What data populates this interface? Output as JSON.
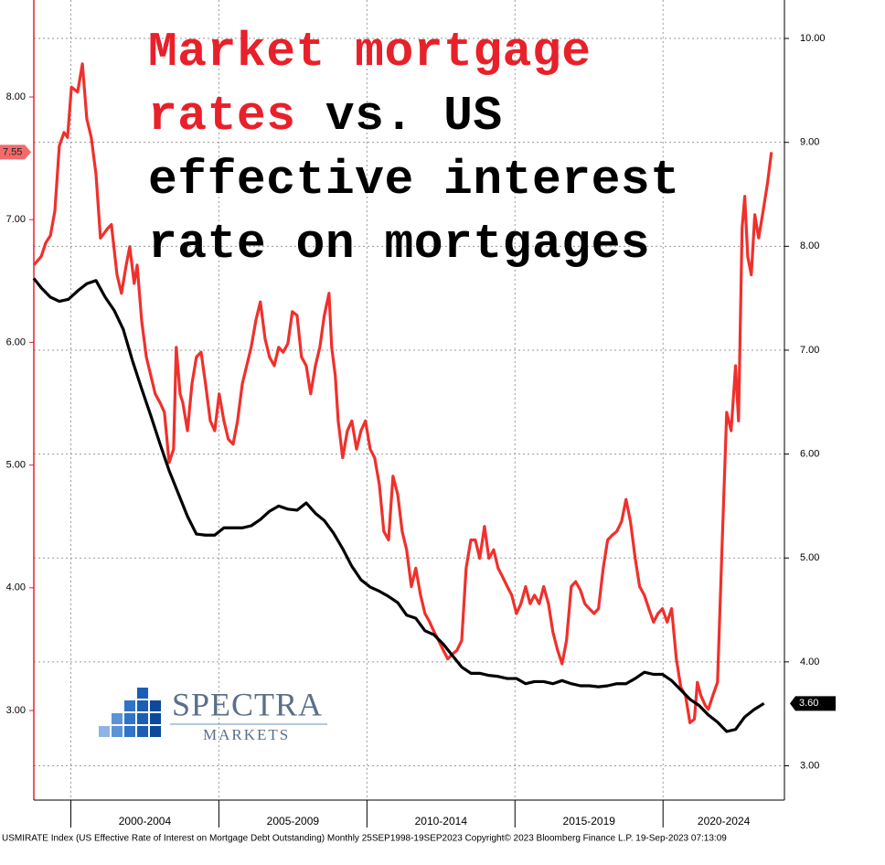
{
  "chart_data": {
    "type": "line",
    "title_parts": [
      "Market mortgage rates",
      "vs. US effective interest rate on mortgages"
    ],
    "footer": "USMIRATE Index (US Effective Rate of Interest on Mortgage Debt Outstanding)  Monthly 25SEP1998-19SEP2023 Copyright© 2023 Bloomberg Finance L.P. 19-Sep-2023 07:13:09",
    "logo": {
      "name": "SPECTRA",
      "sub": "MARKETS"
    },
    "categories": [
      "2000-2004",
      "2005-2009",
      "2010-2014",
      "2015-2019",
      "2020-2024"
    ],
    "xlim": [
      1998.75,
      2024.1
    ],
    "xticks": [
      2000,
      2005,
      2010,
      2015,
      2020
    ],
    "ylim": [
      2.27,
      8.79
    ],
    "yticks": [
      {
        "value": 3,
        "label": "3.00"
      },
      {
        "value": 4,
        "label": "4.00"
      },
      {
        "value": 5,
        "label": "5.00"
      },
      {
        "value": 6,
        "label": "6.00"
      },
      {
        "value": 7,
        "label": "7.00"
      },
      {
        "value": 8,
        "label": "8.00"
      }
    ],
    "y2lim": [
      2.67,
      10.37
    ],
    "y2ticks": [
      {
        "value": 3,
        "label": "3.00"
      },
      {
        "value": 4,
        "label": "4.00"
      },
      {
        "value": 5,
        "label": "5.00"
      },
      {
        "value": 6,
        "label": "6.00"
      },
      {
        "value": 7,
        "label": "7.00"
      },
      {
        "value": 8,
        "label": "8.00"
      },
      {
        "value": 9,
        "label": "9.00"
      },
      {
        "value": 10,
        "label": "10.00"
      }
    ],
    "grid": true,
    "series": [
      {
        "color": "#f0302c",
        "axis": "y",
        "last_value_label": "7.55",
        "x": [
          1998.75,
          1999.0,
          1999.15,
          1999.31,
          1999.46,
          1999.61,
          1999.77,
          1999.89,
          2000.02,
          2000.23,
          2000.39,
          2000.54,
          2000.69,
          2000.85,
          2001.0,
          2001.25,
          2001.37,
          2001.56,
          2001.71,
          2001.87,
          2001.99,
          2002.14,
          2002.24,
          2002.39,
          2002.55,
          2002.7,
          2002.85,
          2003.01,
          2003.16,
          2003.32,
          2003.47,
          2003.56,
          2003.69,
          2003.78,
          2003.94,
          2004.09,
          2004.24,
          2004.4,
          2004.55,
          2004.71,
          2004.86,
          2005.01,
          2005.17,
          2005.32,
          2005.48,
          2005.63,
          2005.79,
          2005.94,
          2006.09,
          2006.25,
          2006.4,
          2006.56,
          2006.71,
          2006.87,
          2007.02,
          2007.17,
          2007.33,
          2007.48,
          2007.64,
          2007.79,
          2007.95,
          2008.1,
          2008.26,
          2008.41,
          2008.56,
          2008.72,
          2008.81,
          2008.93,
          2009.03,
          2009.18,
          2009.34,
          2009.49,
          2009.65,
          2009.8,
          2009.95,
          2010.11,
          2010.26,
          2010.42,
          2010.57,
          2010.73,
          2010.88,
          2011.04,
          2011.19,
          2011.34,
          2011.5,
          2011.65,
          2011.81,
          2011.96,
          2012.12,
          2012.27,
          2012.42,
          2012.58,
          2012.73,
          2012.89,
          2013.04,
          2013.2,
          2013.35,
          2013.51,
          2013.66,
          2013.81,
          2013.97,
          2014.12,
          2014.28,
          2014.43,
          2014.58,
          2014.74,
          2014.89,
          2015.05,
          2015.2,
          2015.36,
          2015.51,
          2015.66,
          2015.82,
          2015.97,
          2016.13,
          2016.28,
          2016.44,
          2016.59,
          2016.74,
          2016.9,
          2017.05,
          2017.21,
          2017.36,
          2017.51,
          2017.67,
          2017.82,
          2017.98,
          2018.13,
          2018.29,
          2018.44,
          2018.6,
          2018.75,
          2018.9,
          2019.06,
          2019.21,
          2019.37,
          2019.52,
          2019.68,
          2019.83,
          2019.98,
          2020.14,
          2020.29,
          2020.45,
          2020.6,
          2020.76,
          2020.91,
          2021.06,
          2021.16,
          2021.28,
          2021.43,
          2021.53,
          2021.68,
          2021.84,
          2021.99,
          2022.15,
          2022.3,
          2022.45,
          2022.55,
          2022.67,
          2022.76,
          2022.86,
          2022.98,
          2023.1,
          2023.23,
          2023.38,
          2023.53,
          2023.66
        ],
        "values": [
          6.63,
          6.7,
          6.81,
          6.87,
          7.07,
          7.6,
          7.71,
          7.67,
          8.08,
          8.04,
          8.27,
          7.82,
          7.67,
          7.37,
          6.85,
          6.93,
          6.96,
          6.55,
          6.4,
          6.63,
          6.78,
          6.48,
          6.63,
          6.18,
          5.88,
          5.73,
          5.58,
          5.51,
          5.43,
          5.02,
          5.13,
          5.96,
          5.58,
          5.51,
          5.28,
          5.66,
          5.88,
          5.92,
          5.66,
          5.36,
          5.28,
          5.58,
          5.36,
          5.21,
          5.17,
          5.36,
          5.66,
          5.81,
          5.96,
          6.18,
          6.33,
          6.03,
          5.88,
          5.81,
          5.96,
          5.92,
          5.99,
          6.25,
          6.22,
          5.88,
          5.81,
          5.58,
          5.81,
          5.96,
          6.22,
          6.4,
          5.96,
          5.73,
          5.36,
          5.06,
          5.28,
          5.36,
          5.13,
          5.28,
          5.36,
          5.13,
          5.06,
          4.84,
          4.46,
          4.39,
          4.91,
          4.76,
          4.46,
          4.31,
          4.01,
          4.16,
          3.94,
          3.79,
          3.72,
          3.64,
          3.57,
          3.49,
          3.42,
          3.46,
          3.49,
          3.57,
          4.16,
          4.39,
          4.39,
          4.24,
          4.5,
          4.24,
          4.31,
          4.16,
          4.09,
          4.01,
          3.94,
          3.79,
          3.87,
          4.01,
          3.87,
          3.94,
          3.87,
          4.01,
          3.87,
          3.64,
          3.49,
          3.38,
          3.57,
          4.01,
          4.05,
          3.98,
          3.87,
          3.83,
          3.79,
          3.83,
          4.16,
          4.39,
          4.43,
          4.46,
          4.54,
          4.72,
          4.54,
          4.24,
          4.01,
          3.94,
          3.83,
          3.72,
          3.79,
          3.83,
          3.72,
          3.83,
          3.42,
          3.19,
          3.12,
          2.9,
          2.93,
          3.23,
          3.12,
          3.04,
          3.01,
          3.12,
          3.23,
          4.31,
          5.43,
          5.28,
          5.81,
          5.36,
          6.93,
          7.19,
          6.7,
          6.55,
          7.04,
          6.85,
          7.07,
          7.3,
          7.55
        ]
      },
      {
        "color": "#000000",
        "axis": "y2",
        "last_value_label": "3.60",
        "x": [
          1998.75,
          1999.0,
          1999.31,
          1999.61,
          1999.92,
          2000.23,
          2000.54,
          2000.85,
          2001.16,
          2001.47,
          2001.77,
          2002.08,
          2002.39,
          2002.7,
          2003.01,
          2003.32,
          2003.63,
          2003.94,
          2004.24,
          2004.55,
          2004.86,
          2005.17,
          2005.48,
          2005.79,
          2006.09,
          2006.4,
          2006.71,
          2007.02,
          2007.33,
          2007.64,
          2007.95,
          2008.26,
          2008.56,
          2008.87,
          2009.18,
          2009.49,
          2009.8,
          2010.11,
          2010.42,
          2010.73,
          2011.04,
          2011.34,
          2011.65,
          2011.96,
          2012.27,
          2012.58,
          2012.89,
          2013.2,
          2013.51,
          2013.81,
          2014.12,
          2014.43,
          2014.74,
          2015.05,
          2015.36,
          2015.66,
          2015.97,
          2016.28,
          2016.59,
          2016.9,
          2017.21,
          2017.51,
          2017.82,
          2018.13,
          2018.44,
          2018.75,
          2019.06,
          2019.37,
          2019.68,
          2019.98,
          2020.29,
          2020.6,
          2020.91,
          2021.22,
          2021.53,
          2021.84,
          2022.15,
          2022.45,
          2022.76,
          2023.07,
          2023.41
        ],
        "values": [
          7.69,
          7.6,
          7.51,
          7.47,
          7.49,
          7.57,
          7.64,
          7.67,
          7.51,
          7.38,
          7.2,
          6.9,
          6.63,
          6.37,
          6.1,
          5.84,
          5.62,
          5.4,
          5.23,
          5.22,
          5.22,
          5.29,
          5.29,
          5.29,
          5.31,
          5.37,
          5.45,
          5.5,
          5.47,
          5.46,
          5.53,
          5.43,
          5.36,
          5.24,
          5.09,
          4.92,
          4.79,
          4.72,
          4.68,
          4.63,
          4.57,
          4.45,
          4.42,
          4.3,
          4.26,
          4.17,
          4.06,
          3.95,
          3.89,
          3.89,
          3.87,
          3.86,
          3.84,
          3.84,
          3.79,
          3.81,
          3.81,
          3.79,
          3.82,
          3.79,
          3.77,
          3.77,
          3.76,
          3.77,
          3.79,
          3.79,
          3.84,
          3.9,
          3.88,
          3.88,
          3.82,
          3.73,
          3.64,
          3.58,
          3.49,
          3.42,
          3.33,
          3.35,
          3.47,
          3.54,
          3.6
        ]
      }
    ]
  }
}
